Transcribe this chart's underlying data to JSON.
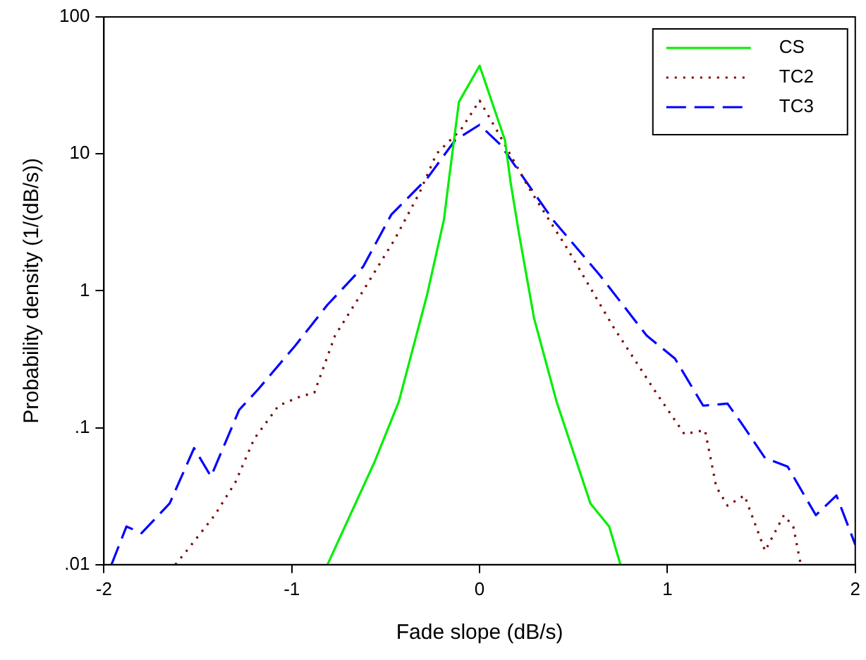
{
  "chart_data": {
    "type": "line",
    "xlabel": "Fade slope (dB/s)",
    "ylabel": "Probability density (1/(dB/s))",
    "log": "y",
    "grid": false,
    "legend": "top right",
    "marker": "none",
    "xlim": [
      -2,
      2
    ],
    "xticks": [
      -2,
      -1,
      0,
      1,
      2
    ],
    "ylim": [
      0.01,
      100
    ],
    "yticks": [
      {
        "value": 0.01,
        "label": ".01"
      },
      {
        "value": 0.1,
        "label": ".1"
      },
      1,
      10,
      100
    ],
    "series": [
      {
        "name": "CS",
        "color": "#00ee00",
        "line_style": "solid",
        "x": [
          -0.81,
          -0.56,
          -0.43,
          -0.28,
          -0.19,
          -0.165,
          -0.11,
          0,
          0.135,
          0.165,
          0.21,
          0.29,
          0.41,
          0.59,
          0.69,
          0.75
        ],
        "values": [
          0.01,
          0.056,
          0.155,
          0.93,
          3.3,
          6.2,
          24,
          44,
          12.6,
          6.2,
          2.6,
          0.63,
          0.155,
          0.028,
          0.019,
          0.01
        ]
      },
      {
        "name": "TC2",
        "color": "#800000",
        "line_style": "dotted",
        "x": [
          -1.62,
          -1.56,
          -1.41,
          -1.3,
          -1.2,
          -1.07,
          -0.95,
          -0.88,
          -0.77,
          -0.62,
          -0.45,
          -0.32,
          -0.23,
          -0.1,
          0,
          0.09,
          0.26,
          0.47,
          0.71,
          0.94,
          1.09,
          1.2,
          1.26,
          1.32,
          1.41,
          1.52,
          1.62,
          1.67,
          1.71
        ],
        "values": [
          0.01,
          0.0126,
          0.023,
          0.04,
          0.083,
          0.145,
          0.17,
          0.18,
          0.47,
          1.0,
          2.4,
          5.2,
          10,
          15,
          24.5,
          15,
          5.7,
          2.0,
          0.55,
          0.18,
          0.09,
          0.096,
          0.037,
          0.027,
          0.032,
          0.0126,
          0.023,
          0.019,
          0.01
        ]
      },
      {
        "name": "TC3",
        "color": "#0000ff",
        "line_style": "dashed",
        "x": [
          -1.96,
          -1.88,
          -1.8,
          -1.65,
          -1.52,
          -1.43,
          -1.28,
          -1.18,
          -0.98,
          -0.81,
          -0.62,
          -0.47,
          -0.28,
          -0.13,
          0,
          0.11,
          0.39,
          0.64,
          0.89,
          1.04,
          1.19,
          1.32,
          1.39,
          1.52,
          1.64,
          1.79,
          1.9,
          2.0
        ],
        "values": [
          0.01,
          0.019,
          0.017,
          0.028,
          0.071,
          0.044,
          0.135,
          0.19,
          0.4,
          0.79,
          1.5,
          3.6,
          6.6,
          12.6,
          16.3,
          11.7,
          3.3,
          1.3,
          0.47,
          0.32,
          0.145,
          0.15,
          0.11,
          0.06,
          0.052,
          0.023,
          0.032,
          0.014
        ]
      }
    ]
  }
}
